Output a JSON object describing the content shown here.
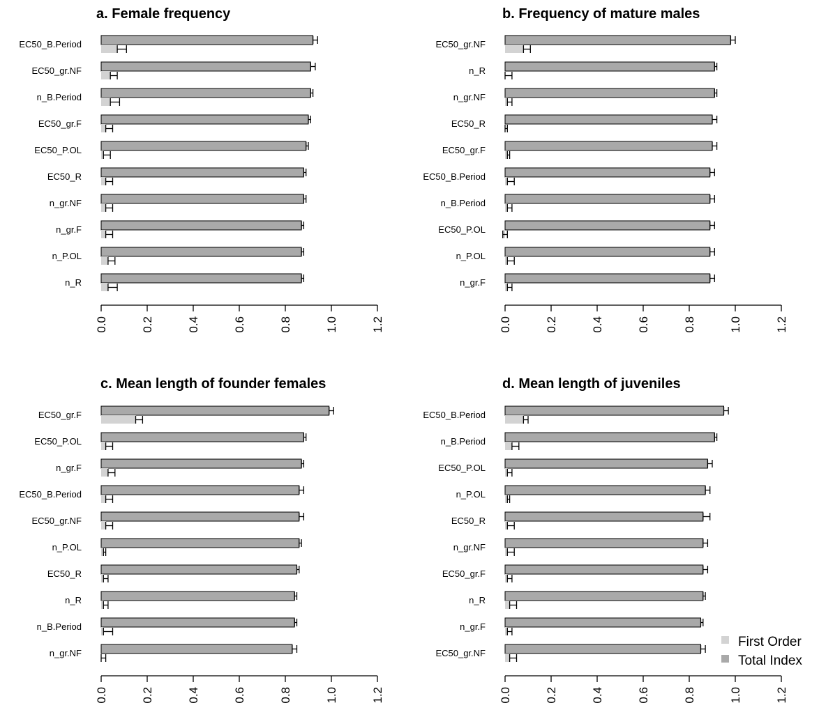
{
  "colors": {
    "first_order": "#d3d3d3",
    "total_index": "#a9a9a9",
    "axis": "#000000"
  },
  "legend": {
    "placement": "bottom-right",
    "items": [
      "First Order",
      "Total Index"
    ]
  },
  "chart_data": [
    {
      "type": "bar",
      "orientation": "horizontal",
      "title": "a. Female frequency",
      "categories": [
        "EC50_B.Period",
        "EC50_gr.NF",
        "n_B.Period",
        "EC50_gr.F",
        "EC50_P.OL",
        "EC50_R",
        "n_gr.NF",
        "n_gr.F",
        "n_P.OL",
        "n_R"
      ],
      "series": [
        {
          "name": "Total Index",
          "values": [
            0.92,
            0.91,
            0.91,
            0.9,
            0.89,
            0.88,
            0.88,
            0.87,
            0.87,
            0.87
          ],
          "err_upper": [
            0.94,
            0.93,
            0.92,
            0.91,
            0.9,
            0.89,
            0.89,
            0.88,
            0.88,
            0.88
          ]
        },
        {
          "name": "First Order",
          "values": [
            0.07,
            0.04,
            0.04,
            0.02,
            0.01,
            0.02,
            0.02,
            0.02,
            0.03,
            0.03
          ],
          "err_upper": [
            0.11,
            0.07,
            0.08,
            0.05,
            0.04,
            0.05,
            0.05,
            0.05,
            0.06,
            0.07
          ]
        }
      ],
      "xlim": [
        0,
        1.2
      ],
      "xticks": [
        "0.0",
        "0.2",
        "0.4",
        "0.6",
        "0.8",
        "1.0",
        "1.2"
      ],
      "xlabel": "",
      "ylabel": ""
    },
    {
      "type": "bar",
      "orientation": "horizontal",
      "title": "b. Frequency of mature males",
      "categories": [
        "EC50_gr.NF",
        "n_R",
        "n_gr.NF",
        "EC50_R",
        "EC50_gr.F",
        "EC50_B.Period",
        "n_B.Period",
        "EC50_P.OL",
        "n_P.OL",
        "n_gr.F"
      ],
      "series": [
        {
          "name": "Total Index",
          "values": [
            0.98,
            0.91,
            0.91,
            0.9,
            0.9,
            0.89,
            0.89,
            0.89,
            0.89,
            0.89
          ],
          "err_upper": [
            1.0,
            0.92,
            0.92,
            0.92,
            0.92,
            0.91,
            0.91,
            0.91,
            0.91,
            0.91
          ]
        },
        {
          "name": "First Order",
          "values": [
            0.08,
            0.0,
            0.01,
            0.0,
            0.01,
            0.01,
            0.01,
            -0.01,
            0.01,
            0.01
          ],
          "err_upper": [
            0.11,
            0.03,
            0.03,
            0.01,
            0.02,
            0.04,
            0.03,
            0.01,
            0.04,
            0.03
          ]
        }
      ],
      "xlim": [
        0,
        1.2
      ],
      "xticks": [
        "0.0",
        "0.2",
        "0.4",
        "0.6",
        "0.8",
        "1.0",
        "1.2"
      ],
      "xlabel": "",
      "ylabel": ""
    },
    {
      "type": "bar",
      "orientation": "horizontal",
      "title": "c. Mean length of founder females",
      "categories": [
        "EC50_gr.F",
        "EC50_P.OL",
        "n_gr.F",
        "EC50_B.Period",
        "EC50_gr.NF",
        "n_P.OL",
        "EC50_R",
        "n_R",
        "n_B.Period",
        "n_gr.NF"
      ],
      "series": [
        {
          "name": "Total Index",
          "values": [
            0.99,
            0.88,
            0.87,
            0.86,
            0.86,
            0.86,
            0.85,
            0.84,
            0.84,
            0.83
          ],
          "err_upper": [
            1.01,
            0.89,
            0.88,
            0.88,
            0.88,
            0.87,
            0.86,
            0.85,
            0.85,
            0.85
          ]
        },
        {
          "name": "First Order",
          "values": [
            0.15,
            0.02,
            0.03,
            0.02,
            0.02,
            0.01,
            0.01,
            0.01,
            0.01,
            0.0
          ],
          "err_upper": [
            0.18,
            0.05,
            0.06,
            0.05,
            0.05,
            0.02,
            0.03,
            0.03,
            0.05,
            0.02
          ]
        }
      ],
      "xlim": [
        0,
        1.2
      ],
      "xticks": [
        "0.0",
        "0.2",
        "0.4",
        "0.6",
        "0.8",
        "1.0",
        "1.2"
      ],
      "xlabel": "",
      "ylabel": ""
    },
    {
      "type": "bar",
      "orientation": "horizontal",
      "title": "d. Mean length of juveniles",
      "categories": [
        "EC50_B.Period",
        "n_B.Period",
        "EC50_P.OL",
        "n_P.OL",
        "EC50_R",
        "n_gr.NF",
        "EC50_gr.F",
        "n_R",
        "n_gr.F",
        "EC50_gr.NF"
      ],
      "series": [
        {
          "name": "Total Index",
          "values": [
            0.95,
            0.91,
            0.88,
            0.87,
            0.86,
            0.86,
            0.86,
            0.86,
            0.85,
            0.85
          ],
          "err_upper": [
            0.97,
            0.92,
            0.9,
            0.89,
            0.89,
            0.88,
            0.88,
            0.87,
            0.86,
            0.87
          ]
        },
        {
          "name": "First Order",
          "values": [
            0.08,
            0.03,
            0.01,
            0.01,
            0.01,
            0.01,
            0.01,
            0.02,
            0.01,
            0.02
          ],
          "err_upper": [
            0.1,
            0.06,
            0.03,
            0.02,
            0.04,
            0.04,
            0.03,
            0.05,
            0.03,
            0.05
          ]
        }
      ],
      "xlim": [
        0,
        1.2
      ],
      "xticks": [
        "0.0",
        "0.2",
        "0.4",
        "0.6",
        "0.8",
        "1.0",
        "1.2"
      ],
      "xlabel": "",
      "ylabel": ""
    }
  ]
}
